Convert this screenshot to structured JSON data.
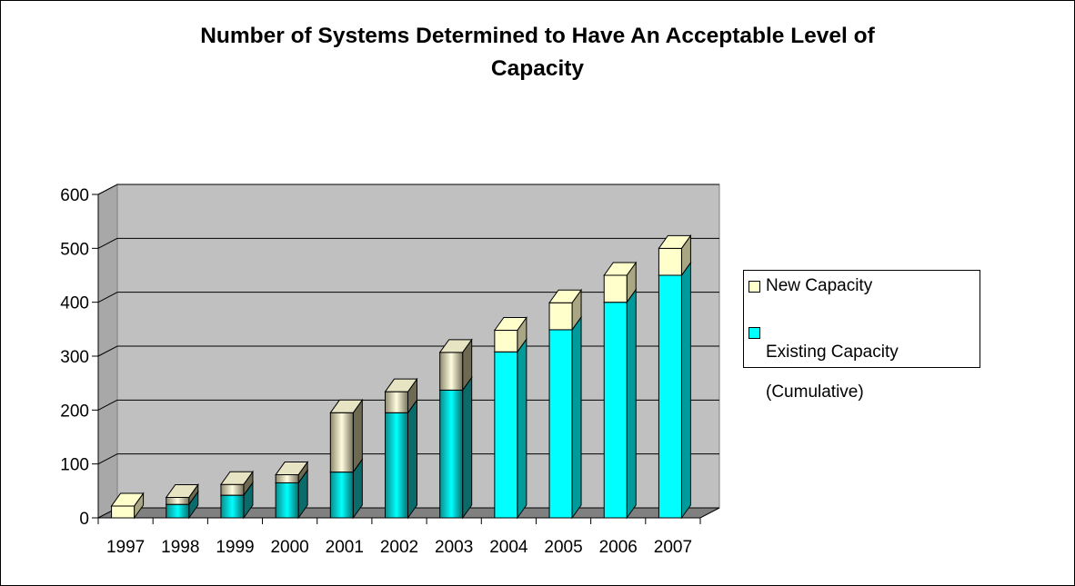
{
  "chart_data": {
    "type": "bar",
    "stacked": true,
    "three_d": true,
    "title": "Number of Systems Determined to Have An Acceptable Level of Capacity",
    "title_lines": [
      "Number of Systems Determined to Have An Acceptable Level of",
      "Capacity"
    ],
    "xlabel": "",
    "ylabel": "",
    "categories": [
      "1997",
      "1998",
      "1999",
      "2000",
      "2001",
      "2002",
      "2003",
      "2004",
      "2005",
      "2006",
      "2007"
    ],
    "series": [
      {
        "name": "Existing Capacity (Cumulative)",
        "legend_lines": [
          "Existing Capacity",
          "(Cumulative)"
        ],
        "color": "#00FFFF",
        "values": [
          0,
          25,
          42,
          65,
          85,
          195,
          237,
          308,
          349,
          400,
          450
        ]
      },
      {
        "name": "New Capacity",
        "legend_lines": [
          "New Capacity"
        ],
        "color": "#FFFFCC",
        "values": [
          22,
          13,
          20,
          15,
          110,
          39,
          70,
          40,
          50,
          50,
          50
        ]
      }
    ],
    "ylim": [
      0,
      600
    ],
    "yticks": [
      "0",
      "100",
      "200",
      "300",
      "400",
      "500",
      "600"
    ],
    "grid": true,
    "legend_position": "right",
    "plot_wall_color": "#C0C0C0",
    "plot_floor_color": "#808080"
  }
}
